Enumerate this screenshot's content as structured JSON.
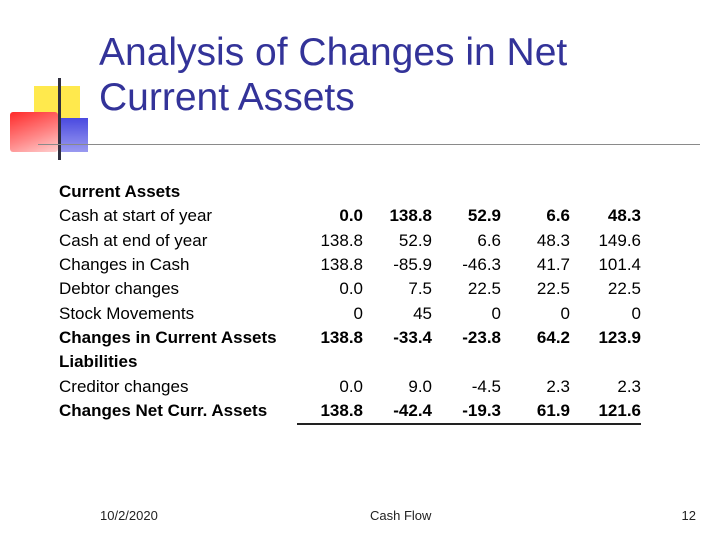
{
  "slide": {
    "title": "Analysis of Changes in Net Current Assets",
    "footer": {
      "date": "10/2/2020",
      "center": "Cash Flow",
      "page": "12"
    }
  },
  "table": {
    "rows": [
      {
        "label": "Current Assets",
        "values": [
          "",
          "",
          "",
          "",
          ""
        ],
        "bold": true
      },
      {
        "label": "Cash at start of year",
        "values": [
          "0.0",
          "138.8",
          "52.9",
          "6.6",
          "48.3"
        ],
        "bold": false,
        "bold_values": true
      },
      {
        "label": "Cash at end of year",
        "values": [
          "138.8",
          "52.9",
          "6.6",
          "48.3",
          "149.6"
        ],
        "bold": false
      },
      {
        "label": "Changes in Cash",
        "values": [
          "138.8",
          "-85.9",
          "-46.3",
          "41.7",
          "101.4"
        ],
        "bold": false
      },
      {
        "label": "Debtor changes",
        "values": [
          "0.0",
          "7.5",
          "22.5",
          "22.5",
          "22.5"
        ],
        "bold": false
      },
      {
        "label": "Stock Movements",
        "values": [
          "0",
          "45",
          "0",
          "0",
          "0"
        ],
        "bold": false
      },
      {
        "label": "Changes in Current Assets",
        "values": [
          "138.8",
          "-33.4",
          "-23.8",
          "64.2",
          "123.9"
        ],
        "bold": true
      },
      {
        "label": "Liabilities",
        "values": [
          "",
          "",
          "",
          "",
          ""
        ],
        "bold": true
      },
      {
        "label": "Creditor changes",
        "values": [
          "0.0",
          "9.0",
          "-4.5",
          "2.3",
          "2.3"
        ],
        "bold": false
      },
      {
        "label": "Changes Net Curr. Assets",
        "values": [
          "138.8",
          "-42.4",
          "-19.3",
          "61.9",
          "121.6"
        ],
        "bold": true
      }
    ]
  }
}
